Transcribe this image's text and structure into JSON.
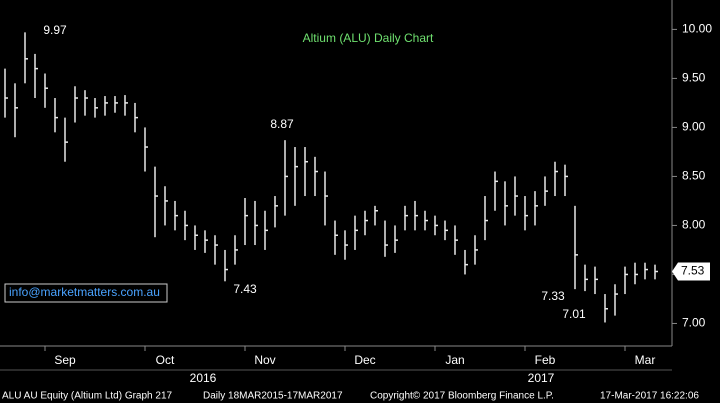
{
  "chart_data": {
    "type": "hlc",
    "title": "Altium (ALU) Daily Chart",
    "categories": [
      null,
      null,
      null,
      null,
      null,
      null,
      "Sep",
      null,
      null,
      null,
      null,
      null,
      null,
      null,
      null,
      null,
      "Oct",
      null,
      null,
      null,
      null,
      null,
      null,
      null,
      null,
      null,
      "Nov",
      null,
      null,
      null,
      null,
      null,
      null,
      null,
      null,
      null,
      "Dec",
      null,
      null,
      null,
      null,
      null,
      null,
      null,
      null,
      "Jan",
      null,
      null,
      null,
      null,
      null,
      null,
      null,
      null,
      "Feb",
      null,
      null,
      null,
      null,
      null,
      null,
      null,
      null,
      null,
      "Mar",
      null
    ],
    "year_labels": [
      "2016",
      "2017"
    ],
    "series": [
      {
        "name": "ALU AU Equity",
        "color": "#e8e8e8",
        "high": [
          9.6,
          9.45,
          9.97,
          9.75,
          9.55,
          9.3,
          9.1,
          9.42,
          9.38,
          9.3,
          9.32,
          9.32,
          9.33,
          9.25,
          9.0,
          8.6,
          8.4,
          8.25,
          8.15,
          8.0,
          7.95,
          7.9,
          7.75,
          7.9,
          8.28,
          8.25,
          8.15,
          8.3,
          8.87,
          8.8,
          8.8,
          8.7,
          8.55,
          8.05,
          7.95,
          8.1,
          8.15,
          8.2,
          8.05,
          8.0,
          8.2,
          8.25,
          8.15,
          8.1,
          8.05,
          8.0,
          7.75,
          7.9,
          8.3,
          8.55,
          8.45,
          8.5,
          8.3,
          8.35,
          8.5,
          8.65,
          8.62,
          8.2,
          7.6,
          7.58,
          7.3,
          7.4,
          7.58,
          7.62,
          7.62,
          7.6
        ],
        "low": [
          9.1,
          8.9,
          9.45,
          9.3,
          9.2,
          8.95,
          8.65,
          9.05,
          9.12,
          9.1,
          9.12,
          9.15,
          9.12,
          8.95,
          8.55,
          7.88,
          8.0,
          7.95,
          7.85,
          7.75,
          7.72,
          7.6,
          7.43,
          7.6,
          7.8,
          7.8,
          7.75,
          7.98,
          8.1,
          8.2,
          8.3,
          8.3,
          8.0,
          7.7,
          7.65,
          7.75,
          7.9,
          8.0,
          7.68,
          7.72,
          7.95,
          7.95,
          7.95,
          7.9,
          7.85,
          7.7,
          7.5,
          7.6,
          7.85,
          8.15,
          8.0,
          8.1,
          7.95,
          8.0,
          8.2,
          8.3,
          8.3,
          7.35,
          7.33,
          7.3,
          7.01,
          7.08,
          7.3,
          7.4,
          7.45,
          7.45
        ],
        "close": [
          9.3,
          9.2,
          9.7,
          9.6,
          9.4,
          9.1,
          8.85,
          9.3,
          9.3,
          9.2,
          9.25,
          9.25,
          9.25,
          9.1,
          8.8,
          8.3,
          8.25,
          8.1,
          8.0,
          7.9,
          7.85,
          7.8,
          7.55,
          7.75,
          8.1,
          8.0,
          7.95,
          8.2,
          8.5,
          8.6,
          8.65,
          8.55,
          8.3,
          7.9,
          7.8,
          7.95,
          8.05,
          8.15,
          7.8,
          7.85,
          8.1,
          8.1,
          8.05,
          8.0,
          7.95,
          7.85,
          7.6,
          7.75,
          8.05,
          8.45,
          8.2,
          8.3,
          8.1,
          8.2,
          8.35,
          8.55,
          8.5,
          7.7,
          7.45,
          7.45,
          7.15,
          7.3,
          7.5,
          7.5,
          7.55,
          7.53
        ]
      }
    ],
    "last_price": 7.53,
    "annotations": [
      "9.97",
      "8.87",
      "7.43",
      "7.33",
      "7.01"
    ],
    "contact": "info@marketmatters.com.au",
    "ylim": [
      6.77,
      10.3
    ],
    "yticks": [
      {
        "value": 7,
        "label": "7.00"
      },
      {
        "value": 7.5,
        "label": "7.50"
      },
      {
        "value": 8,
        "label": "8.00"
      },
      {
        "value": 8.5,
        "label": "8.50"
      },
      {
        "value": 9,
        "label": "9.00"
      },
      {
        "value": 9.5,
        "label": "9.50"
      },
      {
        "value": 10,
        "label": "10.00"
      }
    ],
    "footer": [
      "ALU AU Equity (Altium Ltd) Graph 217",
      "Daily 18MAR2015-17MAR2017",
      "Copyright© 2017 Bloomberg Finance L.P.",
      "17-Mar-2017 16:22:06"
    ]
  }
}
